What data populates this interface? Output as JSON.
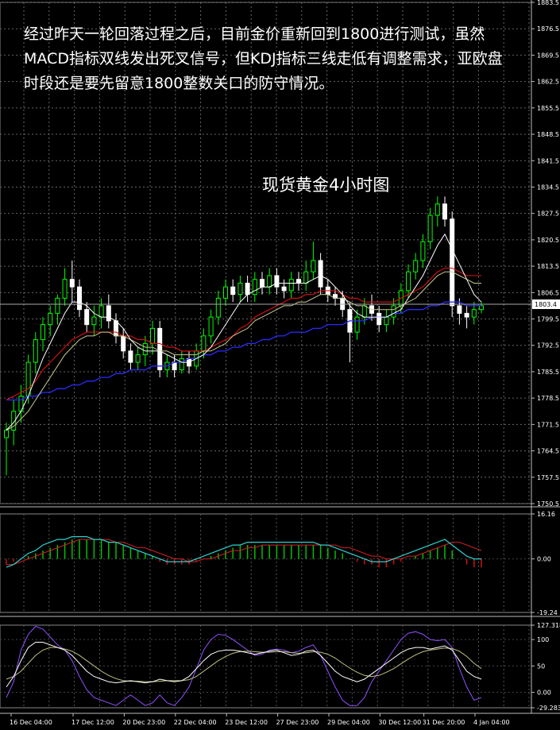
{
  "annotation": {
    "text": "经过昨天一轮回落过程之后，目前金价重新回到1800进行测试，虽然MACD指标双线发出死叉信号，但KDJ指标三线走低有调整需求，亚欧盘时段还是要先留意1800整数关口的防守情况。",
    "subtitle": "现货黄金4小时图"
  },
  "chart_data": [
    {
      "type": "candlestick",
      "title": "现货黄金4小时图",
      "ylim": [
        1750.5,
        1883.5
      ],
      "y_ticks": [
        "1883.5",
        "1876.5",
        "1869.5",
        "1862.5",
        "1855.5",
        "1848.5",
        "1841.5",
        "1834.5",
        "1827.5",
        "1820.5",
        "1813.5",
        "1806.5",
        "1799.5",
        "1792.5",
        "1785.5",
        "1778.5",
        "1771.5",
        "1764.5",
        "1757.5",
        "1750.5"
      ],
      "current_price": "1803.4",
      "x_ticks": [
        "16 Dec 04:00",
        "17 Dec 12:00",
        "20 Dec 23:00",
        "22 Dec 04:00",
        "23 Dec 12:00",
        "27 Dec 23:00",
        "29 Dec 04:00",
        "30 Dec 12:00",
        "31 Dec 20:00",
        "4 Jan 04:00"
      ],
      "candles": [
        [
          1768,
          1770,
          1758,
          1772
        ],
        [
          1770,
          1775,
          1766,
          1778
        ],
        [
          1775,
          1779,
          1772,
          1782
        ],
        [
          1779,
          1788,
          1777,
          1790
        ],
        [
          1788,
          1794,
          1785,
          1796
        ],
        [
          1794,
          1798,
          1791,
          1800
        ],
        [
          1798,
          1801,
          1795,
          1803
        ],
        [
          1801,
          1805,
          1798,
          1806
        ],
        [
          1805,
          1810,
          1803,
          1813
        ],
        [
          1810,
          1808,
          1804,
          1815
        ],
        [
          1808,
          1802,
          1800,
          1810
        ],
        [
          1802,
          1798,
          1796,
          1804
        ],
        [
          1798,
          1800,
          1795,
          1803
        ],
        [
          1800,
          1803,
          1797,
          1805
        ],
        [
          1803,
          1799,
          1797,
          1806
        ],
        [
          1799,
          1795,
          1793,
          1801
        ],
        [
          1795,
          1791,
          1789,
          1797
        ],
        [
          1791,
          1788,
          1786,
          1793
        ],
        [
          1788,
          1790,
          1786,
          1792
        ],
        [
          1790,
          1793,
          1787,
          1795
        ],
        [
          1793,
          1797,
          1790,
          1799
        ],
        [
          1797,
          1786,
          1784,
          1799
        ],
        [
          1786,
          1788,
          1784,
          1790
        ],
        [
          1788,
          1786,
          1784,
          1790
        ],
        [
          1786,
          1789,
          1785,
          1791
        ],
        [
          1789,
          1787,
          1785,
          1791
        ],
        [
          1787,
          1791,
          1786,
          1793
        ],
        [
          1791,
          1795,
          1789,
          1797
        ],
        [
          1795,
          1800,
          1793,
          1802
        ],
        [
          1800,
          1805,
          1798,
          1807
        ],
        [
          1805,
          1808,
          1803,
          1810
        ],
        [
          1808,
          1806,
          1804,
          1810
        ],
        [
          1806,
          1809,
          1804,
          1811
        ],
        [
          1809,
          1806,
          1804,
          1811
        ],
        [
          1806,
          1810,
          1804,
          1812
        ],
        [
          1810,
          1808,
          1806,
          1812
        ],
        [
          1808,
          1811,
          1806,
          1813
        ],
        [
          1811,
          1808,
          1806,
          1813
        ],
        [
          1808,
          1807,
          1805,
          1810
        ],
        [
          1807,
          1810,
          1805,
          1812
        ],
        [
          1810,
          1809,
          1807,
          1812
        ],
        [
          1809,
          1812,
          1807,
          1815
        ],
        [
          1812,
          1815,
          1810,
          1820
        ],
        [
          1815,
          1808,
          1806,
          1817
        ],
        [
          1808,
          1806,
          1804,
          1810
        ],
        [
          1806,
          1805,
          1803,
          1808
        ],
        [
          1805,
          1802,
          1800,
          1807
        ],
        [
          1802,
          1796,
          1788,
          1804
        ],
        [
          1796,
          1800,
          1794,
          1802
        ],
        [
          1800,
          1803,
          1798,
          1805
        ],
        [
          1803,
          1801,
          1799,
          1806
        ],
        [
          1801,
          1798,
          1796,
          1803
        ],
        [
          1798,
          1800,
          1796,
          1802
        ],
        [
          1800,
          1803,
          1798,
          1805
        ],
        [
          1803,
          1807,
          1801,
          1809
        ],
        [
          1807,
          1812,
          1805,
          1814
        ],
        [
          1812,
          1815,
          1810,
          1817
        ],
        [
          1815,
          1820,
          1813,
          1822
        ],
        [
          1820,
          1827,
          1818,
          1829
        ],
        [
          1827,
          1830,
          1824,
          1832
        ],
        [
          1830,
          1826,
          1824,
          1832
        ],
        [
          1826,
          1803,
          1800,
          1828
        ],
        [
          1803,
          1801,
          1798,
          1805
        ],
        [
          1801,
          1800,
          1797,
          1803
        ],
        [
          1800,
          1802,
          1798,
          1804
        ],
        [
          1802,
          1803,
          1801,
          1804
        ]
      ],
      "ma_fast": [
        1770,
        1772,
        1775,
        1779,
        1784,
        1789,
        1793,
        1797,
        1801,
        1804,
        1804,
        1803,
        1801,
        1800,
        1800,
        1799,
        1797,
        1794,
        1792,
        1791,
        1791,
        1791,
        1790,
        1789,
        1788,
        1788,
        1789,
        1790,
        1792,
        1795,
        1798,
        1801,
        1804,
        1806,
        1807,
        1808,
        1808,
        1809,
        1809,
        1809,
        1809,
        1809,
        1810,
        1811,
        1810,
        1808,
        1806,
        1803,
        1801,
        1800,
        1800,
        1800,
        1800,
        1801,
        1802,
        1805,
        1808,
        1811,
        1815,
        1819,
        1822,
        1818,
        1814,
        1810,
        1806,
        1804
      ],
      "ma_mid": [
        1778,
        1779,
        1780,
        1781,
        1783,
        1786,
        1788,
        1790,
        1792,
        1794,
        1795,
        1796,
        1796,
        1796,
        1796,
        1796,
        1795,
        1795,
        1794,
        1794,
        1793,
        1793,
        1792,
        1792,
        1791,
        1791,
        1791,
        1791,
        1792,
        1793,
        1794,
        1795,
        1797,
        1798,
        1800,
        1801,
        1802,
        1803,
        1804,
        1805,
        1805,
        1806,
        1806,
        1807,
        1807,
        1807,
        1806,
        1805,
        1805,
        1804,
        1804,
        1804,
        1804,
        1804,
        1805,
        1806,
        1807,
        1808,
        1810,
        1812,
        1813,
        1813,
        1812,
        1811,
        1811,
        1811
      ],
      "ma_slow": [
        1778,
        1778,
        1778,
        1779,
        1779,
        1780,
        1780,
        1781,
        1781,
        1782,
        1782,
        1783,
        1783,
        1784,
        1784,
        1785,
        1785,
        1786,
        1786,
        1786,
        1787,
        1787,
        1787,
        1788,
        1788,
        1789,
        1789,
        1790,
        1790,
        1791,
        1791,
        1792,
        1792,
        1793,
        1793,
        1794,
        1794,
        1795,
        1795,
        1796,
        1796,
        1796,
        1797,
        1797,
        1798,
        1798,
        1798,
        1799,
        1799,
        1799,
        1800,
        1800,
        1800,
        1801,
        1801,
        1802,
        1802,
        1802,
        1803,
        1803,
        1804,
        1804,
        1804,
        1803,
        1803,
        1803
      ],
      "ma_extra": [
        1770,
        1771,
        1773,
        1775,
        1778,
        1781,
        1784,
        1787,
        1790,
        1792,
        1794,
        1795,
        1795,
        1796,
        1796,
        1795,
        1795,
        1794,
        1793,
        1792,
        1792,
        1791,
        1791,
        1790,
        1790,
        1790,
        1790,
        1791,
        1791,
        1792,
        1793,
        1795,
        1796,
        1797,
        1799,
        1800,
        1801,
        1802,
        1803,
        1803,
        1804,
        1804,
        1805,
        1806,
        1806,
        1805,
        1805,
        1804,
        1803,
        1803,
        1802,
        1802,
        1802,
        1802,
        1803,
        1804,
        1805,
        1807,
        1809,
        1811,
        1812,
        1812,
        1811,
        1810,
        1809,
        1809
      ]
    },
    {
      "type": "macd",
      "ylim": [
        -19.24,
        16.16
      ],
      "y_ticks": [
        "16.16",
        "0.00",
        "-19.24"
      ],
      "histogram": [
        -2,
        -1,
        0,
        1,
        2,
        3,
        4,
        5,
        6,
        7,
        7,
        7,
        7,
        7,
        6,
        6,
        5,
        4,
        3,
        2,
        1,
        -1,
        -2,
        -2,
        -2,
        -2,
        -1,
        0,
        1,
        2,
        3,
        4,
        5,
        5,
        5,
        5,
        5,
        5,
        5,
        5,
        5,
        5,
        5,
        5,
        4,
        3,
        2,
        0,
        -1,
        -2,
        -2,
        -3,
        -3,
        -2,
        -1,
        0,
        1,
        2,
        3,
        4,
        5,
        3,
        0,
        -2,
        -3,
        -3
      ],
      "macd": [
        -3,
        -2,
        0,
        2,
        3,
        5,
        6,
        7,
        7,
        8,
        8,
        8,
        7,
        7,
        6,
        6,
        5,
        4,
        3,
        2,
        1,
        0,
        -1,
        -1,
        -1,
        -1,
        0,
        1,
        2,
        3,
        4,
        5,
        5,
        6,
        6,
        6,
        6,
        6,
        6,
        6,
        6,
        6,
        6,
        5,
        5,
        4,
        3,
        2,
        1,
        0,
        -1,
        -1,
        -1,
        0,
        1,
        2,
        3,
        4,
        5,
        6,
        7,
        5,
        3,
        1,
        0,
        0
      ],
      "signal": [
        -2,
        -2,
        -1,
        0,
        1,
        2,
        3,
        4,
        5,
        6,
        7,
        7,
        7,
        7,
        7,
        6,
        6,
        5,
        4,
        4,
        3,
        2,
        1,
        0,
        0,
        -1,
        -1,
        0,
        0,
        1,
        2,
        3,
        3,
        4,
        4,
        5,
        5,
        5,
        5,
        5,
        5,
        5,
        5,
        5,
        5,
        5,
        4,
        4,
        3,
        2,
        1,
        1,
        0,
        0,
        0,
        1,
        1,
        2,
        3,
        4,
        5,
        6,
        6,
        5,
        4,
        3
      ]
    },
    {
      "type": "kdj",
      "ylim": [
        -29.283,
        127.318
      ],
      "y_ticks": [
        "127.318",
        "100",
        "50",
        "0.00",
        "-29.283"
      ],
      "k": [
        10,
        30,
        60,
        85,
        95,
        95,
        90,
        85,
        80,
        70,
        55,
        40,
        30,
        25,
        20,
        18,
        20,
        22,
        20,
        18,
        20,
        25,
        22,
        20,
        22,
        30,
        45,
        60,
        72,
        78,
        80,
        80,
        78,
        75,
        72,
        75,
        78,
        80,
        75,
        70,
        72,
        78,
        80,
        70,
        55,
        40,
        30,
        25,
        20,
        25,
        35,
        45,
        55,
        65,
        75,
        82,
        85,
        85,
        82,
        85,
        88,
        80,
        60,
        40,
        30,
        25
      ],
      "d": [
        25,
        30,
        40,
        55,
        70,
        80,
        85,
        85,
        82,
        78,
        70,
        60,
        50,
        40,
        32,
        26,
        22,
        21,
        21,
        20,
        20,
        21,
        22,
        22,
        22,
        24,
        30,
        40,
        50,
        60,
        68,
        74,
        77,
        78,
        77,
        76,
        76,
        77,
        77,
        75,
        74,
        75,
        77,
        76,
        72,
        65,
        55,
        46,
        38,
        32,
        30,
        32,
        38,
        45,
        54,
        63,
        71,
        77,
        80,
        82,
        84,
        83,
        78,
        68,
        55,
        45
      ],
      "j": [
        -10,
        20,
        80,
        110,
        125,
        120,
        105,
        90,
        80,
        60,
        30,
        5,
        -10,
        -15,
        -20,
        -25,
        -15,
        -5,
        -15,
        -25,
        -20,
        -5,
        -20,
        -25,
        -10,
        10,
        45,
        80,
        100,
        110,
        108,
        100,
        90,
        80,
        70,
        72,
        80,
        82,
        80,
        75,
        78,
        85,
        90,
        70,
        40,
        10,
        -15,
        -25,
        -25,
        -10,
        20,
        40,
        60,
        80,
        100,
        112,
        115,
        110,
        100,
        98,
        100,
        85,
        45,
        10,
        -15,
        -10
      ]
    }
  ]
}
